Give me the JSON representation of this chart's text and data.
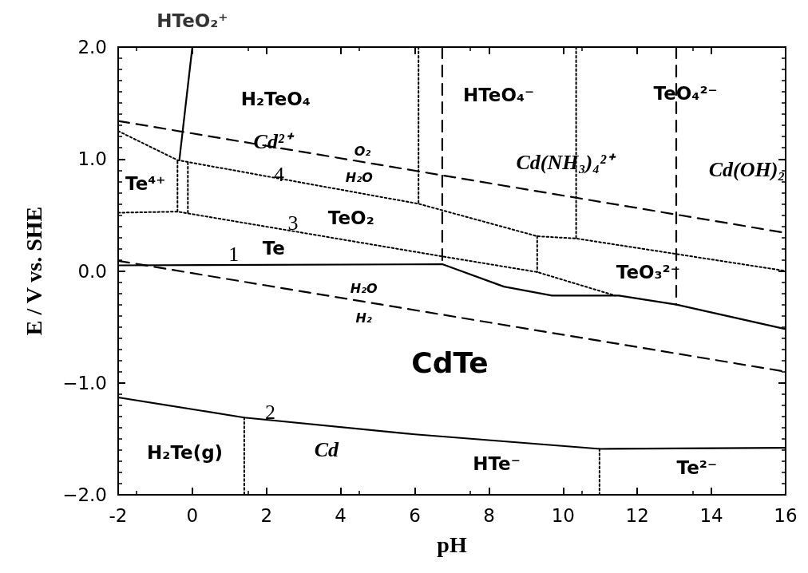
{
  "chart_data": {
    "type": "line",
    "xlabel": "pH",
    "ylabel": "E / V vs. SHE",
    "xlim": [
      -2,
      16
    ],
    "xticks": [
      -2,
      0,
      2,
      4,
      6,
      8,
      10,
      12,
      14,
      16
    ],
    "ylim": [
      -2,
      2
    ],
    "yticks": [
      {
        "value": -2,
        "label": "−2.0"
      },
      {
        "value": -1,
        "label": "−1.0"
      },
      {
        "value": 0,
        "label": "0.0"
      },
      {
        "value": 1,
        "label": "1.0"
      },
      {
        "value": 2,
        "label": "2.0"
      }
    ],
    "marker": "none",
    "series": [
      {
        "color": "#000000",
        "line_style": "solid",
        "x": [
          -2,
          6.74,
          8.4,
          9.7,
          11.5,
          13.05,
          16
        ],
        "values": [
          0.05,
          0.06,
          -0.14,
          -0.22,
          -0.22,
          -0.3,
          -0.52
        ]
      },
      {
        "color": "#000000",
        "line_style": "solid",
        "x": [
          -2,
          1.4,
          6,
          11,
          16
        ],
        "values": [
          -1.13,
          -1.31,
          -1.46,
          -1.59,
          -1.58
        ]
      },
      {
        "color": "#000000",
        "line_style": "dashed",
        "x": [
          -2,
          16
        ],
        "values": [
          1.34,
          0.34
        ]
      },
      {
        "color": "#000000",
        "line_style": "dashed",
        "x": [
          -2,
          16
        ],
        "values": [
          0.09,
          -0.9
        ]
      },
      {
        "color": "#000000",
        "line_style": "dotted",
        "x": [
          -2,
          -0.4,
          6.1,
          9.3,
          10.35,
          16
        ],
        "values": [
          1.25,
          0.99,
          0.6,
          0.31,
          0.29,
          0.0
        ]
      },
      {
        "color": "#000000",
        "line_style": "dotted",
        "x": [
          -2,
          -0.4,
          6.74,
          9.3,
          11.4
        ],
        "values": [
          0.52,
          0.53,
          0.13,
          -0.01,
          -0.22
        ]
      },
      {
        "color": "#000000",
        "line_style": "dotted",
        "x": [
          -0.4,
          -0.4
        ],
        "values": [
          0.53,
          0.99
        ]
      },
      {
        "color": "#000000",
        "line_style": "dotted",
        "x": [
          -0.12,
          -0.12
        ],
        "values": [
          0.52,
          0.97
        ]
      },
      {
        "color": "#000000",
        "line_style": "dotted",
        "x": [
          6.1,
          6.1
        ],
        "values": [
          2,
          0.6
        ]
      },
      {
        "color": "#000000",
        "line_style": "dotted",
        "x": [
          9.3,
          9.3
        ],
        "values": [
          0.31,
          -0.01
        ]
      },
      {
        "color": "#000000",
        "line_style": "dotted",
        "x": [
          10.35,
          10.35
        ],
        "values": [
          2,
          0.29
        ]
      },
      {
        "color": "#000000",
        "line_style": "dotted",
        "x": [
          1.4,
          1.4
        ],
        "values": [
          -1.31,
          -2
        ]
      },
      {
        "color": "#000000",
        "line_style": "dotted",
        "x": [
          10.98,
          10.98
        ],
        "values": [
          -1.59,
          -2
        ]
      },
      {
        "color": "#000000",
        "line_style": "dashed",
        "x": [
          6.74,
          6.74
        ],
        "values": [
          2,
          0.06
        ]
      },
      {
        "color": "#000000",
        "line_style": "dashed",
        "x": [
          13.05,
          13.05
        ],
        "values": [
          2,
          -0.3
        ]
      },
      {
        "color": "#000000",
        "line_style": "solid",
        "x": [
          -0.35,
          0.0
        ],
        "values": [
          0.99,
          2
        ]
      }
    ],
    "annotations": [
      {
        "text": "HTeO₂⁺",
        "x": 0.0,
        "y": 2.0
      },
      "H₂TeO₄",
      "Cd²⁺",
      "O₂",
      "H₂O",
      "Te⁴⁺",
      "4",
      "TeO₂",
      "3",
      "Te",
      "1",
      "H₂O",
      "H₂",
      "2",
      "H₂Te(g)",
      "Cd",
      "HTeO₄⁻",
      "TeO₄²⁻",
      "Cd(NH₃)₄²⁺",
      "Cd(OH)₂",
      "CdTe",
      "TeO₃²⁻",
      "HTe⁻",
      "Te²⁻"
    ]
  }
}
